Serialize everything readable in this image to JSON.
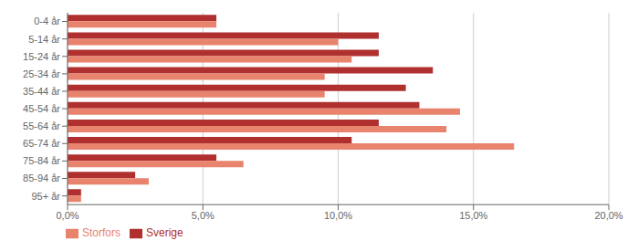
{
  "chart_data": {
    "type": "bar",
    "orientation": "horizontal",
    "categories": [
      "0-4 år",
      "5-14 år",
      "15-24 år",
      "25-34 år",
      "35-44 år",
      "45-54 år",
      "55-64 år",
      "65-74 år",
      "75-84 år",
      "85-94 år",
      "95+ år"
    ],
    "series": [
      {
        "name": "Sverige",
        "color": "#b03030",
        "values": [
          5.5,
          11.5,
          11.5,
          13.5,
          12.5,
          13.0,
          11.5,
          10.5,
          5.5,
          2.5,
          0.5
        ]
      },
      {
        "name": "Storfors",
        "color": "#e8836e",
        "values": [
          5.5,
          10.0,
          10.5,
          9.5,
          9.5,
          14.5,
          14.0,
          16.5,
          6.5,
          3.0,
          0.5
        ]
      }
    ],
    "xlim": [
      0,
      20.0
    ],
    "xticks": [
      {
        "value": 0.0,
        "label": "0,0%"
      },
      {
        "value": 5.0,
        "label": "5,0%"
      },
      {
        "value": 10.0,
        "label": "10,0%"
      },
      {
        "value": 15.0,
        "label": "15,0%"
      },
      {
        "value": 20.0,
        "label": "20,0%"
      }
    ],
    "grid": true,
    "legend": "lower left"
  }
}
